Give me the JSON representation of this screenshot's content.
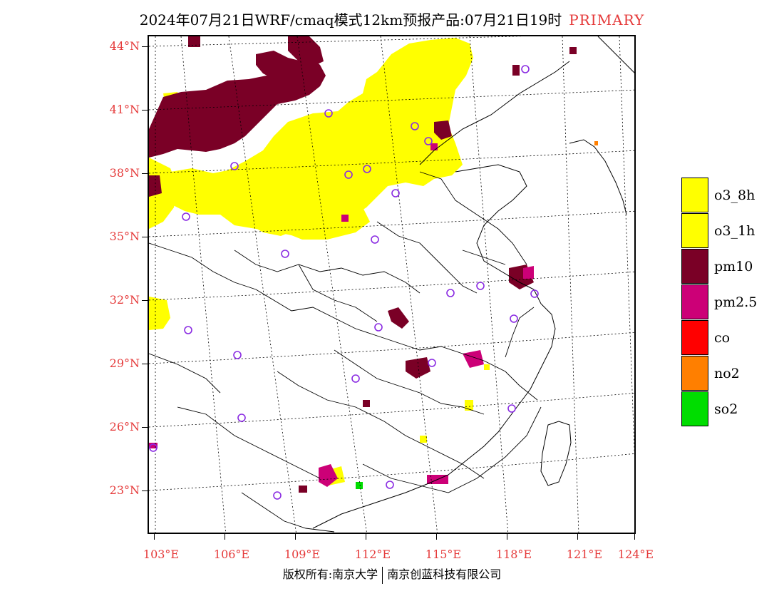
{
  "title": {
    "main": "2024年07月21日WRF/cmaq模式12km预报产品:07月21日19时",
    "tag": "PRIMARY"
  },
  "colors": {
    "o3_8h": "#ffff00",
    "o3_1h": "#ffff00",
    "pm10": "#7a0026",
    "pm25": "#cc0077",
    "co": "#ff0000",
    "no2": "#ff7f00",
    "so2": "#00dd00",
    "axis_label": "#e53a3a",
    "station": "#8a2be2"
  },
  "axes": {
    "lat_labels": [
      "44°N",
      "41°N",
      "38°N",
      "35°N",
      "32°N",
      "29°N",
      "26°N",
      "23°N"
    ],
    "lon_labels": [
      "103°E",
      "106°E",
      "109°E",
      "112°E",
      "115°E",
      "118°E",
      "121°E",
      "124°E"
    ]
  },
  "legend": [
    {
      "label": "o3_8h",
      "color": "#ffff00"
    },
    {
      "label": "o3_1h",
      "color": "#ffff00"
    },
    {
      "label": "pm10",
      "color": "#7a0026"
    },
    {
      "label": "pm2.5",
      "color": "#cc0077"
    },
    {
      "label": "co",
      "color": "#ff0000"
    },
    {
      "label": "no2",
      "color": "#ff7f00"
    },
    {
      "label": "so2",
      "color": "#00dd00"
    }
  ],
  "footer": {
    "left": "版权所有:南京大学",
    "right": "南京创蓝科技有限公司"
  }
}
